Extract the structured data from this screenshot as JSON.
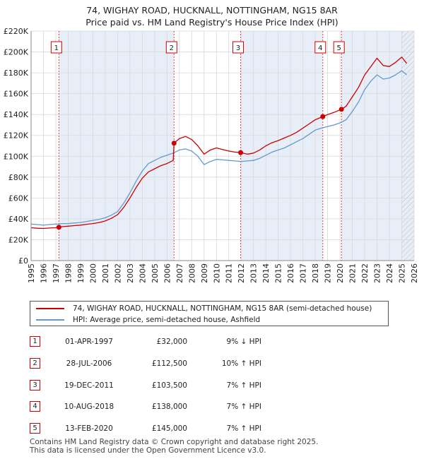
{
  "title_line1": "74, WIGHAY ROAD, HUCKNALL, NOTTINGHAM, NG15 8AR",
  "title_line2": "Price paid vs. HM Land Registry's House Price Index (HPI)",
  "legend": {
    "property": "74, WIGHAY ROAD, HUCKNALL, NOTTINGHAM, NG15 8AR (semi-detached house)",
    "hpi": "HPI: Average price, semi-detached house, Ashfield"
  },
  "transactions": [
    {
      "num": "1",
      "date": "01-APR-1997",
      "price": "£32,000",
      "hpi": "9% ↓ HPI"
    },
    {
      "num": "2",
      "date": "28-JUL-2006",
      "price": "£112,500",
      "hpi": "10% ↑ HPI"
    },
    {
      "num": "3",
      "date": "19-DEC-2011",
      "price": "£103,500",
      "hpi": "7% ↑ HPI"
    },
    {
      "num": "4",
      "date": "10-AUG-2018",
      "price": "£138,000",
      "hpi": "7% ↑ HPI"
    },
    {
      "num": "5",
      "date": "13-FEB-2020",
      "price": "£145,000",
      "hpi": "7% ↑ HPI"
    }
  ],
  "footer_line1": "Contains HM Land Registry data © Crown copyright and database right 2025.",
  "footer_line2": "This data is licensed under the Open Government Licence v3.0.",
  "colors": {
    "property": "#cc0000",
    "hpi": "#6699cc",
    "shade": "#e8eef8",
    "grid": "#d8d8d8"
  },
  "chart_data": {
    "type": "line",
    "xlim": [
      1995,
      2026
    ],
    "ylim": [
      0,
      220000
    ],
    "x_ticks": [
      "1995",
      "1996",
      "1997",
      "1998",
      "1999",
      "2000",
      "2001",
      "2002",
      "2003",
      "2004",
      "2005",
      "2006",
      "2007",
      "2008",
      "2009",
      "2010",
      "2011",
      "2012",
      "2013",
      "2014",
      "2015",
      "2016",
      "2017",
      "2018",
      "2019",
      "2020",
      "2021",
      "2022",
      "2023",
      "2024",
      "2025",
      "2026"
    ],
    "y_ticks": [
      {
        "v": 0,
        "label": "£0"
      },
      {
        "v": 20000,
        "label": "£20K"
      },
      {
        "v": 40000,
        "label": "£40K"
      },
      {
        "v": 60000,
        "label": "£60K"
      },
      {
        "v": 80000,
        "label": "£80K"
      },
      {
        "v": 100000,
        "label": "£100K"
      },
      {
        "v": 120000,
        "label": "£120K"
      },
      {
        "v": 140000,
        "label": "£140K"
      },
      {
        "v": 160000,
        "label": "£160K"
      },
      {
        "v": 180000,
        "label": "£180K"
      },
      {
        "v": 200000,
        "label": "£200K"
      },
      {
        "v": 220000,
        "label": "£220K"
      }
    ],
    "sales": [
      {
        "label": "1",
        "x": 1997.25,
        "y": 32000
      },
      {
        "label": "2",
        "x": 2006.57,
        "y": 112500
      },
      {
        "label": "3",
        "x": 2011.96,
        "y": 103500
      },
      {
        "label": "4",
        "x": 2018.61,
        "y": 138000
      },
      {
        "label": "5",
        "x": 2020.12,
        "y": 145000
      }
    ],
    "series": [
      {
        "name": "HPI: Average price, semi-detached house, Ashfield",
        "x": [
          1995.0,
          1995.5,
          1996.0,
          1996.5,
          1997.0,
          1997.5,
          1998.0,
          1998.5,
          1999.0,
          1999.5,
          2000.0,
          2000.5,
          2001.0,
          2001.5,
          2002.0,
          2002.5,
          2003.0,
          2003.5,
          2004.0,
          2004.5,
          2005.0,
          2005.5,
          2006.0,
          2006.5,
          2007.0,
          2007.5,
          2008.0,
          2008.5,
          2009.0,
          2009.5,
          2010.0,
          2010.5,
          2011.0,
          2011.5,
          2012.0,
          2012.5,
          2013.0,
          2013.5,
          2014.0,
          2014.5,
          2015.0,
          2015.5,
          2016.0,
          2016.5,
          2017.0,
          2017.5,
          2018.0,
          2018.5,
          2019.0,
          2019.5,
          2020.0,
          2020.5,
          2021.0,
          2021.5,
          2022.0,
          2022.5,
          2023.0,
          2023.5,
          2024.0,
          2024.5,
          2025.0,
          2025.4
        ],
        "y": [
          35000,
          34500,
          34000,
          34500,
          35000,
          35500,
          35500,
          36000,
          36500,
          37500,
          38500,
          39500,
          41000,
          43500,
          47000,
          55000,
          65000,
          76000,
          86000,
          93000,
          96000,
          99000,
          101000,
          103000,
          106000,
          107000,
          105000,
          100000,
          92000,
          95000,
          97000,
          96500,
          96000,
          95500,
          95000,
          95500,
          96000,
          98000,
          101000,
          104000,
          106000,
          108000,
          111000,
          114000,
          117000,
          121000,
          125000,
          127000,
          128500,
          130000,
          132000,
          135000,
          143000,
          152000,
          164000,
          172000,
          178000,
          174000,
          175000,
          178000,
          182000,
          178000
        ]
      },
      {
        "name": "74, WIGHAY ROAD, HUCKNALL, NOTTINGHAM, NG15 8AR (semi-detached house)",
        "x": [
          1995.0,
          1995.5,
          1996.0,
          1996.5,
          1997.0,
          1997.25,
          1997.5,
          1998.0,
          1998.5,
          1999.0,
          1999.5,
          2000.0,
          2000.5,
          2001.0,
          2001.5,
          2002.0,
          2002.5,
          2003.0,
          2003.5,
          2004.0,
          2004.5,
          2005.0,
          2005.5,
          2006.0,
          2006.5,
          2006.57,
          2007.0,
          2007.5,
          2008.0,
          2008.5,
          2009.0,
          2009.5,
          2010.0,
          2010.5,
          2011.0,
          2011.5,
          2011.96,
          2012.5,
          2013.0,
          2013.5,
          2014.0,
          2014.5,
          2015.0,
          2015.5,
          2016.0,
          2016.5,
          2017.0,
          2017.5,
          2018.0,
          2018.61,
          2019.0,
          2019.5,
          2020.12,
          2020.5,
          2021.0,
          2021.5,
          2022.0,
          2022.5,
          2023.0,
          2023.5,
          2024.0,
          2024.5,
          2025.0,
          2025.4
        ],
        "y": [
          31500,
          31000,
          30800,
          31200,
          31500,
          32000,
          32500,
          33000,
          33500,
          34000,
          34800,
          35500,
          36500,
          38000,
          40500,
          44000,
          51000,
          60000,
          70000,
          79000,
          85000,
          88000,
          91000,
          93000,
          96000,
          112500,
          117000,
          119000,
          116000,
          110000,
          102000,
          106000,
          108000,
          106500,
          105000,
          104000,
          103500,
          102000,
          103000,
          106000,
          110000,
          113000,
          115000,
          117500,
          120000,
          123000,
          127000,
          131000,
          135000,
          138000,
          140000,
          142000,
          145000,
          148000,
          157000,
          166000,
          178000,
          186000,
          194000,
          187000,
          186000,
          190000,
          195000,
          189000
        ]
      }
    ]
  }
}
